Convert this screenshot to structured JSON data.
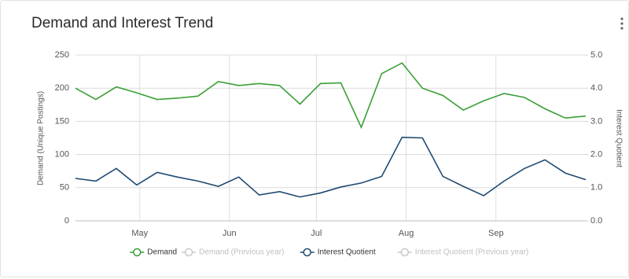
{
  "chart_data": {
    "type": "line",
    "title": "Demand and Interest Trend",
    "ylabel": "Demand (Unique Postings)",
    "y2label": "Interest Quotient",
    "categories": [
      null,
      null,
      null,
      null,
      null,
      null,
      null,
      null,
      null,
      null,
      null,
      null,
      null,
      null,
      null,
      null,
      null,
      null,
      null,
      null,
      null,
      null,
      null,
      null,
      null,
      null
    ],
    "xlim": [
      0,
      25
    ],
    "xticks": [
      {
        "value": 3.15,
        "label": "May"
      },
      {
        "value": 7.54,
        "label": "Jun"
      },
      {
        "value": 11.8,
        "label": "Jul"
      },
      {
        "value": 16.2,
        "label": "Aug"
      },
      {
        "value": 20.6,
        "label": "Sep"
      }
    ],
    "ylim": [
      0,
      250
    ],
    "yticks": [
      0,
      50,
      100,
      150,
      200,
      250
    ],
    "y2lim": [
      0,
      5
    ],
    "y2ticks": [
      {
        "value": 0,
        "label": "0.0"
      },
      {
        "value": 1,
        "label": "1.0"
      },
      {
        "value": 2,
        "label": "2.0"
      },
      {
        "value": 3,
        "label": "3.0"
      },
      {
        "value": 4,
        "label": "4.0"
      },
      {
        "value": 5,
        "label": "5.0"
      }
    ],
    "grid": true,
    "legend": "bottom",
    "series": [
      {
        "name": "Demand",
        "color": "#3a9f35",
        "visible": true,
        "values": [
          200,
          183,
          202,
          193,
          183,
          185,
          188,
          210,
          204,
          207,
          204,
          176,
          207,
          208,
          141,
          222,
          238,
          200,
          189,
          167,
          181,
          192,
          186,
          169,
          155,
          158
        ]
      },
      {
        "name": "Demand (Previous year)",
        "color": "#c8c8c8",
        "visible": false,
        "values": [
          null,
          null,
          null,
          null,
          null,
          null,
          null,
          null,
          null,
          null,
          null,
          null,
          null,
          null,
          null,
          null,
          null,
          null,
          null,
          null,
          null,
          null,
          null,
          null,
          null,
          null
        ]
      },
      {
        "name": "Interest Quotient",
        "color": "#1f4a70",
        "visible": true,
        "axis": "y2",
        "values": [
          1.28,
          1.2,
          1.58,
          1.08,
          1.46,
          1.32,
          1.2,
          1.04,
          1.32,
          0.78,
          0.88,
          0.72,
          0.84,
          1.02,
          1.14,
          1.34,
          2.52,
          2.5,
          1.34,
          1.04,
          0.76,
          1.2,
          1.58,
          1.84,
          1.44,
          1.24
        ]
      },
      {
        "name": "Interest Quotient (Previous year)",
        "color": "#c8c8c8",
        "visible": false,
        "axis": "y2",
        "values": [
          null,
          null,
          null,
          null,
          null,
          null,
          null,
          null,
          null,
          null,
          null,
          null,
          null,
          null,
          null,
          null,
          null,
          null,
          null,
          null,
          null,
          null,
          null,
          null,
          null,
          null
        ]
      }
    ]
  }
}
